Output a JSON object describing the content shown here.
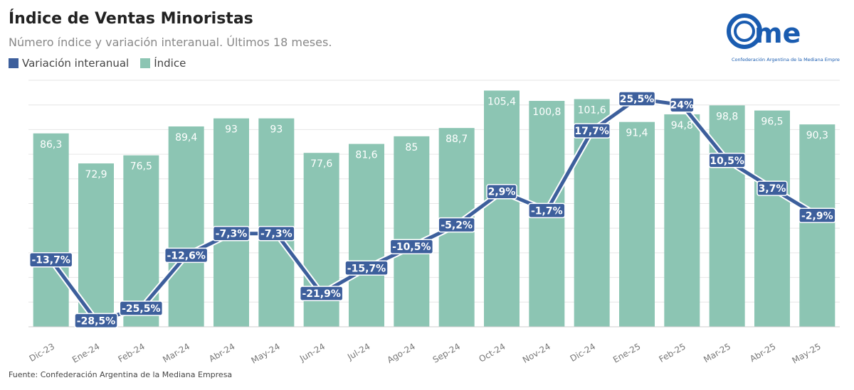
{
  "title": "Índice de Ventas Minoristas",
  "subtitle": "Número índice y variación interanual. Últimos 18 meses.",
  "source": "Fuente: Confederación Argentina de la Mediana Empresa",
  "logo": {
    "text": "came",
    "tagline": "Confederación Argentina de la Mediana Empresa",
    "color": "#1a5cb0"
  },
  "chart_data": {
    "type": "bar+line",
    "categories": [
      "Dic-23",
      "Ene-24",
      "Feb-24",
      "Mar-24",
      "Abr-24",
      "May-24",
      "Jun-24",
      "Jul-24",
      "Ago-24",
      "Sep-24",
      "Oct-24",
      "Nov-24",
      "Dic-24",
      "Ene-25",
      "Feb-25",
      "Mar-25",
      "Abr-25",
      "May-25"
    ],
    "series": [
      {
        "name": "Índice",
        "type": "bar",
        "color": "#8cc5b3",
        "labels": [
          "86,3",
          "72,9",
          "76,5",
          "89,4",
          "93",
          "93",
          "77,6",
          "81,6",
          "85",
          "88,7",
          "105,4",
          "100,8",
          "101,6",
          "91,4",
          "94,8",
          "98,8",
          "96,5",
          "90,3"
        ],
        "values": [
          86.3,
          72.9,
          76.5,
          89.4,
          93,
          93,
          77.6,
          81.6,
          85,
          88.7,
          105.4,
          100.8,
          101.6,
          91.4,
          94.8,
          98.8,
          96.5,
          90.3
        ],
        "ylim": [
          0,
          110
        ]
      },
      {
        "name": "Variación interanual",
        "type": "line",
        "color": "#3d5f9c",
        "labels": [
          "-13,7%",
          "-28,5%",
          "-25,5%",
          "-12,6%",
          "-7,3%",
          "-7,3%",
          "-21,9%",
          "-15,7%",
          "-10,5%",
          "-5,2%",
          "2,9%",
          "-1,7%",
          "17,7%",
          "25,5%",
          "24%",
          "10,5%",
          "3,7%",
          "-2,9%"
        ],
        "values": [
          -13.7,
          -28.5,
          -25.5,
          -12.6,
          -7.3,
          -7.3,
          -21.9,
          -15.7,
          -10.5,
          -5.2,
          2.9,
          -1.7,
          17.7,
          25.5,
          24,
          10.5,
          3.7,
          -2.9
        ],
        "ylim": [
          -30,
          30
        ]
      }
    ],
    "grid": true,
    "legend": "top-left"
  }
}
